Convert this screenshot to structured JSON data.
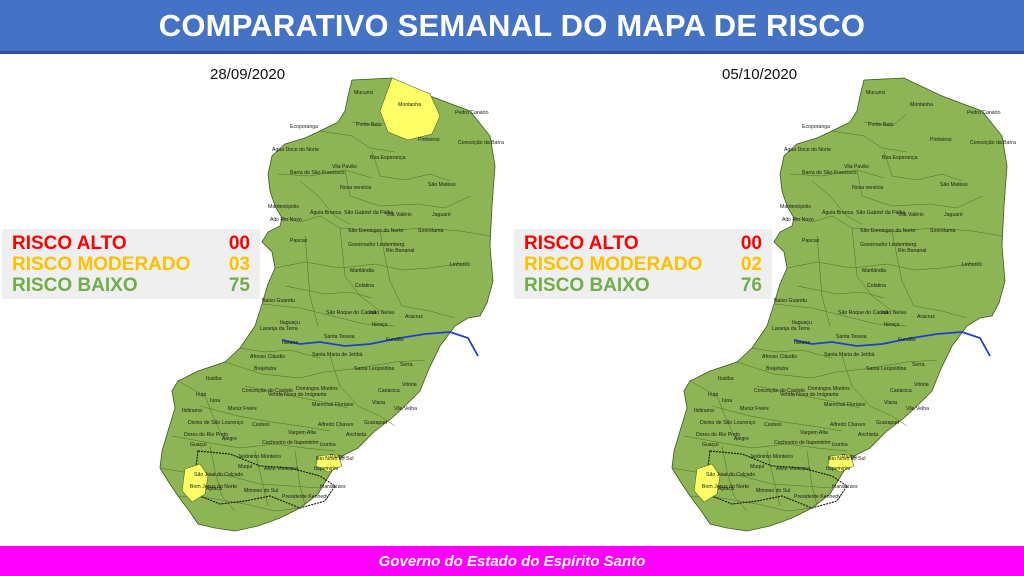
{
  "header": {
    "title": "COMPARATIVO SEMANAL DO MAPA DE RISCO"
  },
  "footer": {
    "text": "Governo do Estado do Espírito Santo"
  },
  "colors": {
    "risk_high": "#ff0000",
    "risk_moderate": "#ffc000",
    "risk_low": "#70ad47",
    "map_low_fill": "#8db555",
    "map_moderate_fill": "#ffff66",
    "river": "#1f3fd0",
    "header_bg": "#4472c4",
    "footer_bg": "#ff00ff"
  },
  "maps": [
    {
      "date": "28/09/2020",
      "legend": [
        {
          "label": "RISCO ALTO",
          "value": "00"
        },
        {
          "label": "RISCO MODERADO",
          "value": "03"
        },
        {
          "label": "RISCO BAIXO",
          "value": "75"
        }
      ],
      "moderate_municipalities": [
        "Montanha",
        "São José do Calçado",
        "Piúma"
      ]
    },
    {
      "date": "05/10/2020",
      "legend": [
        {
          "label": "RISCO ALTO",
          "value": "00"
        },
        {
          "label": "RISCO MODERADO",
          "value": "02"
        },
        {
          "label": "RISCO BAIXO",
          "value": "76"
        }
      ],
      "moderate_municipalities": [
        "São José do Calçado",
        "Piúma"
      ]
    }
  ],
  "municipality_labels": [
    "Mucurici",
    "Montanha",
    "Pedro Canário",
    "Ecoporanga",
    "Ponto Belo",
    "Pinheiros",
    "Conceição da Barra",
    "Água Doce do Norte",
    "Boa Esperança",
    "Vila Pavão",
    "Barra de São Francisco",
    "Nova venécia",
    "São Mateus",
    "Mantenópolis",
    "Alto Rio Novo",
    "Águia Branca",
    "São Gabriel da Palha",
    "Vila Valério",
    "Jaguaré",
    "São Domingos do Norte",
    "Sooretama",
    "Pancas",
    "Governador Lindemberg",
    "Rio Bananal",
    "Linhares",
    "Marilândia",
    "Colatina",
    "Baixo Guandu",
    "São Roque do Canaã",
    "João Neiva",
    "Aracruz",
    "Itaguaçu",
    "Ibiraçu",
    "Laranja da Terra",
    "Santa Teresa",
    "Fundão",
    "Itarana",
    "Afonso Cláudio",
    "Santa Maria de Jetibá",
    "Serra",
    "Santa Leopoldina",
    "Brejetuba",
    "Ibatiba",
    "Conceição do Castelo",
    "Domingos Martins",
    "Cariacica",
    "Venda Nova do Imigrante",
    "Vitória",
    "Iúna",
    "Marechal Floriano",
    "Viana",
    "Vila Velha",
    "Irupi",
    "Muniz Freire",
    "Ibitirama",
    "Alfredo Chaves",
    "Divino de São Lourenço",
    "Castelo",
    "Guarapari",
    "Dores do Rio Preto",
    "Vargem Alta",
    "Anchieta",
    "Alegre",
    "Cachoeiro de Itapemirim",
    "Guaçuí",
    "Jerônimo Monteiro",
    "Iconha",
    "Piúma",
    "São José do Calçado",
    "Rio Novo do Sul",
    "Muqui",
    "Atílio Vivacqua",
    "Itapemirim",
    "Bom Jesus do Norte",
    "Apiacá",
    "Mimoso do Sul",
    "Presidente Kennedy",
    "Marataízes"
  ]
}
